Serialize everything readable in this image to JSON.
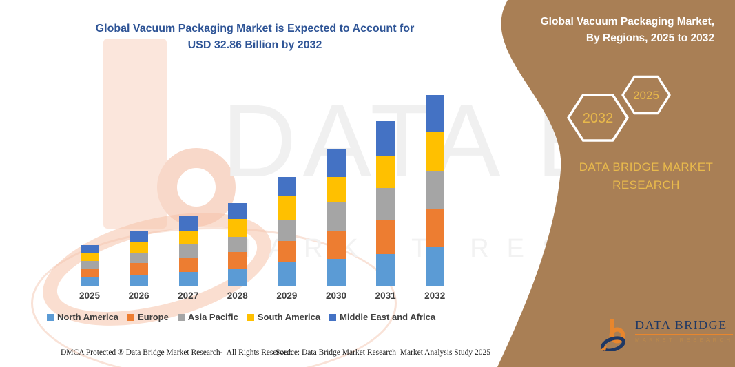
{
  "main_title": {
    "line1": "Global Vacuum Packaging Market is Expected to Account for",
    "line2": "USD 32.86 Billion by 2032"
  },
  "panel": {
    "heading_line1": "Global Vacuum Packaging Market,",
    "heading_line2": "By Regions, 2025 to 2032",
    "hexagons": [
      {
        "label": "2032"
      },
      {
        "label": "2025"
      }
    ],
    "brand_text": "DATA BRIDGE MARKET RESEARCH",
    "colors": {
      "background": "#A97F55",
      "gold": "#E8B84B",
      "text": "#FFFFFF"
    }
  },
  "watermark": {
    "brand_line1": "DATA BRIDGE",
    "brand_line2": "MARKET RESEARCH"
  },
  "logo": {
    "name": "DATA BRIDGE",
    "subtext": "MARKET RESEARCH"
  },
  "footer": {
    "dmca": "DMCA Protected ® Data Bridge Market Research-  All Rights Reserved.",
    "source": "Source: Data Bridge Market Research  Market Analysis Study 2025"
  },
  "chart_data": {
    "type": "bar",
    "stacked": true,
    "unit": "USD Billion",
    "title": "Global Vacuum Packaging Market, By Regions, 2025 to 2032",
    "categories": [
      "2025",
      "2026",
      "2027",
      "2028",
      "2029",
      "2030",
      "2031",
      "2032"
    ],
    "series": [
      {
        "name": "North America",
        "color": "#5B9BD5",
        "values": [
          1.5,
          1.9,
          2.4,
          2.9,
          4.1,
          4.6,
          5.5,
          6.6
        ]
      },
      {
        "name": "Europe",
        "color": "#ED7D31",
        "values": [
          1.4,
          2.0,
          2.4,
          2.9,
          3.6,
          4.9,
          5.9,
          6.7
        ]
      },
      {
        "name": "Asia Pacific",
        "color": "#A5A5A5",
        "values": [
          1.4,
          1.8,
          2.3,
          2.6,
          3.6,
          4.8,
          5.5,
          6.5
        ]
      },
      {
        "name": "South America",
        "color": "#FFC000",
        "values": [
          1.4,
          1.8,
          2.4,
          3.1,
          4.2,
          4.5,
          5.5,
          6.66
        ]
      },
      {
        "name": "Middle East and Africa",
        "color": "#4472C4",
        "values": [
          1.3,
          2.0,
          2.5,
          2.8,
          3.3,
          4.8,
          5.9,
          6.4
        ]
      }
    ],
    "totals": [
      7.0,
      9.5,
      12.0,
      14.3,
      18.8,
      23.6,
      28.3,
      32.86
    ],
    "ylim": [
      0,
      33
    ],
    "y_axis_visible": false,
    "gridlines": false,
    "legend_position": "bottom"
  }
}
